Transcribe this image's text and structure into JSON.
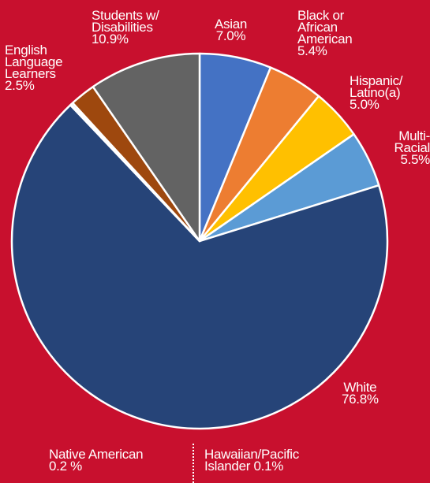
{
  "colors": {
    "background": "#c8102e",
    "slice_stroke": "#ffffff"
  },
  "chart_data": {
    "type": "pie",
    "title": "",
    "legend": "none",
    "start_angle_deg": 0,
    "slices": [
      {
        "id": "asian",
        "lines": [
          "Asian",
          "7.0%"
        ],
        "value": 7.0,
        "color": "#4472c4"
      },
      {
        "id": "black",
        "lines": [
          "Black or",
          "African",
          "American",
          "5.4%"
        ],
        "value": 5.4,
        "color": "#ed7d31"
      },
      {
        "id": "hispanic",
        "lines": [
          "Hispanic/",
          "Latino(a)",
          "5.0%"
        ],
        "value": 5.0,
        "color": "#ffc000"
      },
      {
        "id": "multi",
        "lines": [
          "Multi-",
          "Racial",
          "5.5%"
        ],
        "value": 5.5,
        "color": "#5b9bd5"
      },
      {
        "id": "white",
        "lines": [
          "White",
          "76.8%"
        ],
        "value": 76.8,
        "color": "#264478"
      },
      {
        "id": "hawaiian",
        "lines": [
          "Hawaiian/Pacific",
          "Islander  0.1%"
        ],
        "value": 0.1,
        "color": "#264478"
      },
      {
        "id": "native",
        "lines": [
          "Native American",
          "0.2 %"
        ],
        "value": 0.2,
        "color": "#264478"
      },
      {
        "id": "ell",
        "lines": [
          "English",
          "Language",
          "Learners",
          "2.5%"
        ],
        "value": 2.5,
        "color": "#9e480e"
      },
      {
        "id": "swd",
        "lines": [
          "Students w/",
          "Disabilities",
          "10.9%"
        ],
        "value": 10.9,
        "color": "#636363"
      }
    ]
  }
}
